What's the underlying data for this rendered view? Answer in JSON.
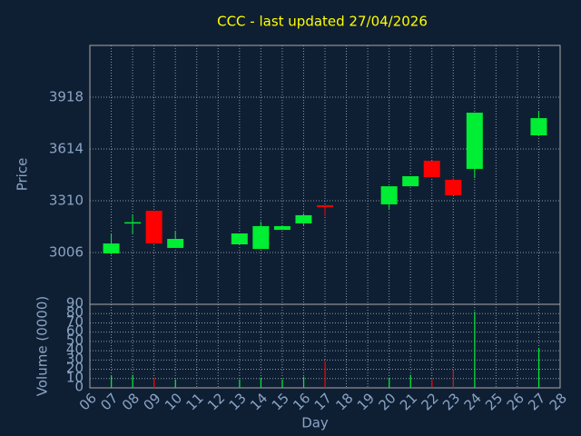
{
  "chart_data": [
    {
      "type": "candlestick",
      "title": "CCC - last updated 27/04/2026",
      "y_label": "Price",
      "x": [
        7,
        8,
        9,
        10,
        13,
        14,
        15,
        16,
        17,
        20,
        21,
        22,
        23,
        24,
        27
      ],
      "open": [
        3001,
        3180,
        3251,
        3033,
        3054,
        3027,
        3139,
        3177,
        3283,
        3289,
        3395,
        3545,
        3433,
        3497,
        3694
      ],
      "high": [
        3113,
        3230,
        3251,
        3129,
        3118,
        3187,
        3166,
        3235,
        3283,
        3395,
        3454,
        3545,
        3443,
        3827,
        3838
      ],
      "low": [
        2995,
        3118,
        3059,
        3033,
        3054,
        3027,
        3139,
        3161,
        3219,
        3262,
        3395,
        3449,
        3342,
        3443,
        3694
      ],
      "close": [
        3059,
        3184,
        3059,
        3086,
        3118,
        3161,
        3161,
        3225,
        3273,
        3395,
        3454,
        3449,
        3342,
        3827,
        3795
      ],
      "up_color": "#00ee33",
      "down_color": "#ff0000",
      "xlim": [
        6,
        28
      ],
      "ylim": [
        2702,
        4222
      ],
      "yticks": [
        3006,
        3310,
        3614,
        3918
      ],
      "grid": true
    },
    {
      "type": "bar",
      "y_label": "Volume (0000)",
      "x_label": "Day",
      "values": [
        13,
        14,
        11,
        9,
        9,
        11,
        9,
        12,
        29,
        11,
        14,
        9,
        19,
        82,
        43
      ],
      "xlim": [
        6,
        28
      ],
      "ylim": [
        0,
        90
      ],
      "yticks": [
        0,
        10,
        20,
        30,
        40,
        50,
        60,
        70,
        80,
        90
      ],
      "xticks": [
        {
          "value": 6,
          "label": "06"
        },
        {
          "value": 7,
          "label": "07"
        },
        {
          "value": 8,
          "label": "08"
        },
        {
          "value": 9,
          "label": "09"
        },
        10,
        11,
        12,
        13,
        14,
        15,
        16,
        17,
        18,
        19,
        20,
        21,
        22,
        23,
        24,
        25,
        26,
        27,
        28
      ],
      "grid": true
    }
  ]
}
